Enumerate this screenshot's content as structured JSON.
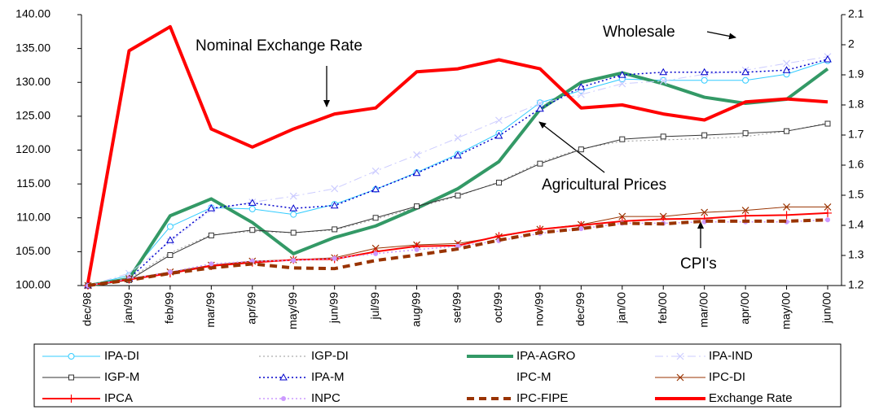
{
  "chart_data": {
    "type": "line",
    "categories": [
      "dec/98",
      "jan/99",
      "feb/99",
      "mar/99",
      "apr/99",
      "may/99",
      "jun/99",
      "jul/99",
      "aug/99",
      "set/99",
      "oct/99",
      "nov/99",
      "dec/99",
      "jan/00",
      "feb/00",
      "mar/00",
      "apr/00",
      "may/00",
      "jun/00"
    ],
    "ylim": [
      100,
      140
    ],
    "yticks": [
      {
        "value": 100,
        "label": "100.00"
      },
      {
        "value": 105,
        "label": "105.00"
      },
      {
        "value": 110,
        "label": "110.00"
      },
      {
        "value": 115,
        "label": "115.00"
      },
      {
        "value": 120,
        "label": "120.00"
      },
      {
        "value": 125,
        "label": "125.00"
      },
      {
        "value": 130,
        "label": "130.00"
      },
      {
        "value": 135,
        "label": "135.00"
      },
      {
        "value": 140,
        "label": "140.00"
      }
    ],
    "y2lim": [
      1.2,
      2.1
    ],
    "y2ticks": [
      1.2,
      1.3,
      1.4,
      1.5,
      1.6,
      1.7,
      1.8,
      1.9,
      2,
      2.1
    ],
    "series": [
      {
        "name": "IPA-DI",
        "color": "#33ccff",
        "width": 1,
        "dash": "none",
        "marker": "circle",
        "values": [
          100,
          101.5,
          108.7,
          111.5,
          111.3,
          110.5,
          112,
          114.2,
          116.7,
          119.4,
          122.5,
          127,
          128.8,
          130.5,
          130.3,
          130.3,
          130.3,
          131.2,
          133.2
        ]
      },
      {
        "name": "IGP-DI",
        "color": "#999999",
        "width": 1,
        "dash": "dot",
        "marker": "none",
        "values": [
          100,
          101,
          104.8,
          107.5,
          108,
          107.8,
          108.2,
          109.8,
          111.5,
          113.2,
          115.3,
          118.2,
          120.2,
          121.3,
          121.5,
          121.7,
          122,
          122.8,
          124
        ]
      },
      {
        "name": "IPA-AGRO",
        "color": "#339966",
        "width": 4,
        "dash": "none",
        "marker": "none",
        "values": [
          100,
          101,
          110.3,
          112.8,
          109.3,
          104.7,
          107.1,
          108.8,
          111.4,
          114.3,
          118.3,
          126,
          130,
          131.4,
          129.8,
          127.8,
          126.9,
          127.5,
          132
        ]
      },
      {
        "name": "IPA-IND",
        "color": "#ccccff",
        "width": 1,
        "dash": "dashdot",
        "marker": "x",
        "values": [
          100,
          101.8,
          106.5,
          111.2,
          112.3,
          113.2,
          114.3,
          116.9,
          119.3,
          121.8,
          124.4,
          126.9,
          128.2,
          129.8,
          130.2,
          131.2,
          131.8,
          132.8,
          133.8
        ]
      },
      {
        "name": "IGP-M",
        "color": "#333333",
        "width": 1,
        "dash": "none",
        "marker": "square",
        "values": [
          100,
          100.8,
          104.5,
          107.4,
          108.2,
          107.8,
          108.3,
          110,
          111.7,
          113.3,
          115.2,
          118,
          120.1,
          121.6,
          122,
          122.2,
          122.5,
          122.8,
          123.9
        ]
      },
      {
        "name": "IPA-M",
        "color": "#0000cc",
        "width": 1.5,
        "dash": "dot",
        "marker": "triangle",
        "values": [
          100,
          101,
          106.7,
          111.4,
          112.2,
          111.4,
          111.8,
          114.2,
          116.6,
          119.2,
          122.1,
          126.1,
          129.3,
          131.1,
          131.5,
          131.5,
          131.5,
          131.8,
          133.4
        ]
      },
      {
        "name": "IPC-M",
        "color": "none",
        "width": 1,
        "dash": "none",
        "marker": "none",
        "values": [
          null,
          null,
          null,
          null,
          null,
          null,
          null,
          null,
          null,
          null,
          null,
          null,
          null,
          null,
          null,
          null,
          null,
          null,
          null
        ]
      },
      {
        "name": "IPC-DI",
        "color": "#993300",
        "width": 1,
        "dash": "none",
        "marker": "x",
        "values": [
          100,
          101,
          102,
          103,
          103.6,
          103.8,
          104.1,
          105.5,
          106,
          106.2,
          107.2,
          108.3,
          109,
          110.2,
          110.2,
          110.8,
          111.1,
          111.6,
          111.6
        ]
      },
      {
        "name": "IPCA",
        "color": "#ff0000",
        "width": 2,
        "dash": "none",
        "marker": "plus",
        "values": [
          100,
          100.9,
          101.8,
          102.9,
          103.4,
          103.8,
          103.9,
          105,
          105.8,
          105.9,
          107.3,
          108.3,
          108.9,
          109.5,
          109.8,
          109.9,
          110.3,
          110.4,
          110.7
        ]
      },
      {
        "name": "INPC",
        "color": "#cc99ff",
        "width": 1.5,
        "dash": "dot",
        "marker": "dot",
        "values": [
          100,
          101,
          102,
          103.2,
          103.6,
          103.7,
          104,
          104.7,
          105.3,
          105.8,
          106.6,
          107.7,
          108.4,
          109.2,
          109.2,
          109.4,
          109.4,
          109.4,
          109.7
        ]
      },
      {
        "name": "IPC-FIPE",
        "color": "#993300",
        "width": 4,
        "dash": "dash",
        "marker": "none",
        "values": [
          100,
          100.8,
          101.8,
          102.6,
          103.2,
          102.6,
          102.5,
          103.7,
          104.5,
          105.4,
          106.7,
          107.8,
          108.4,
          109.2,
          109.1,
          109.5,
          109.5,
          109.5,
          109.7
        ]
      },
      {
        "name": "Exchange Rate",
        "color": "#ff0000",
        "width": 4,
        "dash": "none",
        "marker": "none",
        "axis": "y2",
        "values": [
          1.21,
          1.98,
          2.06,
          1.72,
          1.66,
          1.72,
          1.77,
          1.79,
          1.91,
          1.92,
          1.95,
          1.92,
          1.79,
          1.8,
          1.77,
          1.75,
          1.81,
          1.82,
          1.81
        ]
      }
    ],
    "annotations": [
      "Nominal Exchange Rate",
      "Wholesale",
      "Agricultural Prices",
      "CPI's"
    ]
  }
}
